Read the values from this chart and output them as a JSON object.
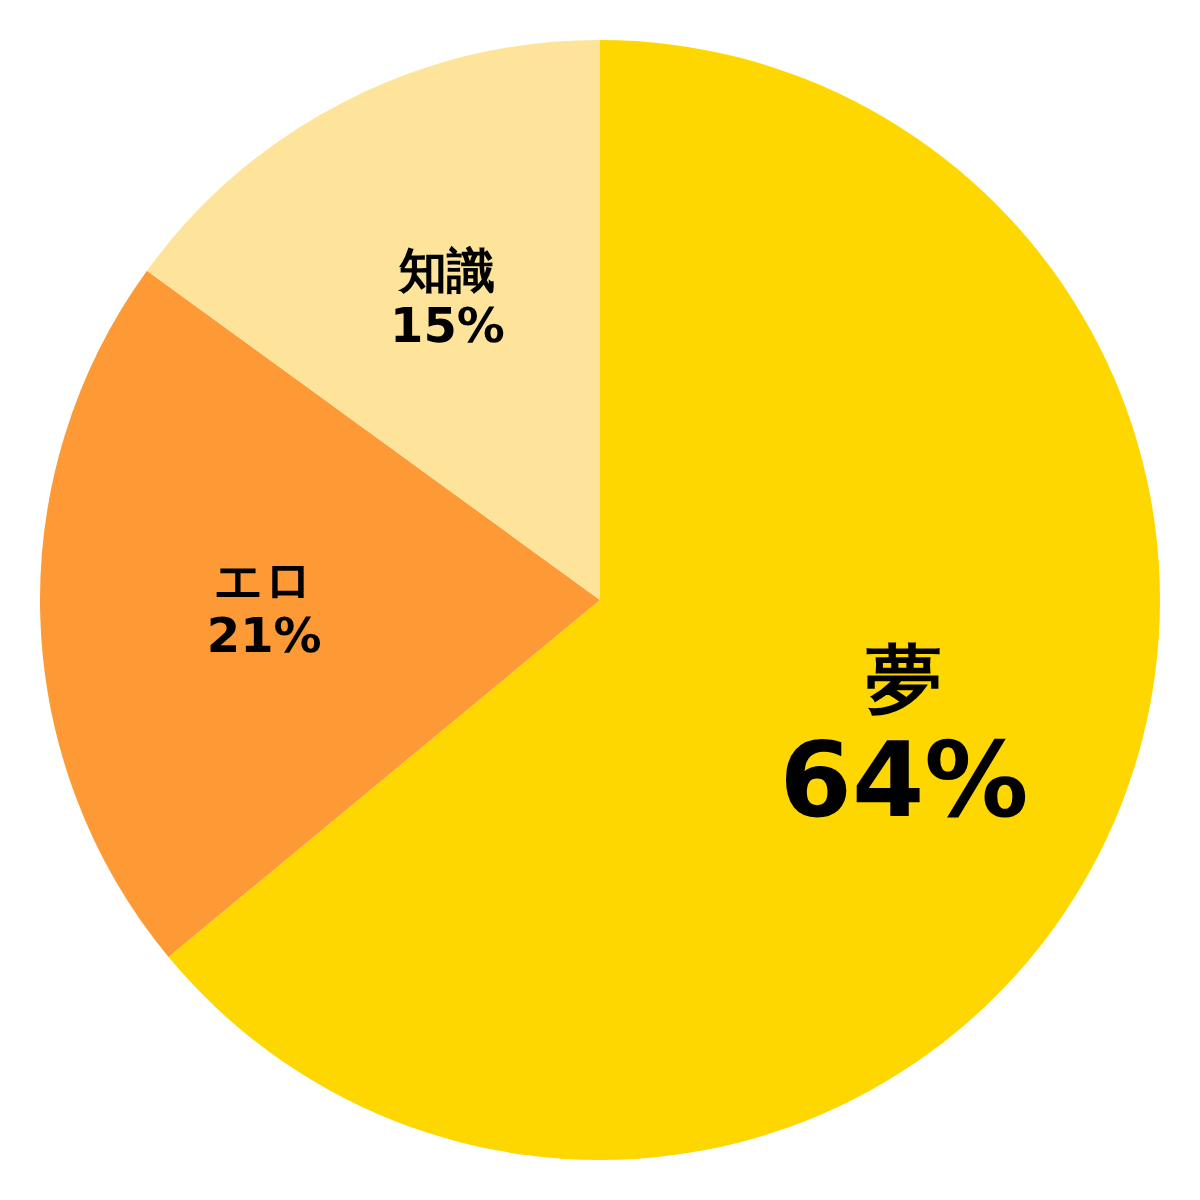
{
  "chart_data": {
    "type": "pie",
    "categories": [
      "夢",
      "エロ",
      "知識"
    ],
    "values": [
      64,
      21,
      15
    ],
    "colors": [
      "#ffd700",
      "#fe9a35",
      "#fee49a"
    ],
    "value_labels": [
      "64%",
      "21%",
      "15%"
    ],
    "legend": false
  }
}
